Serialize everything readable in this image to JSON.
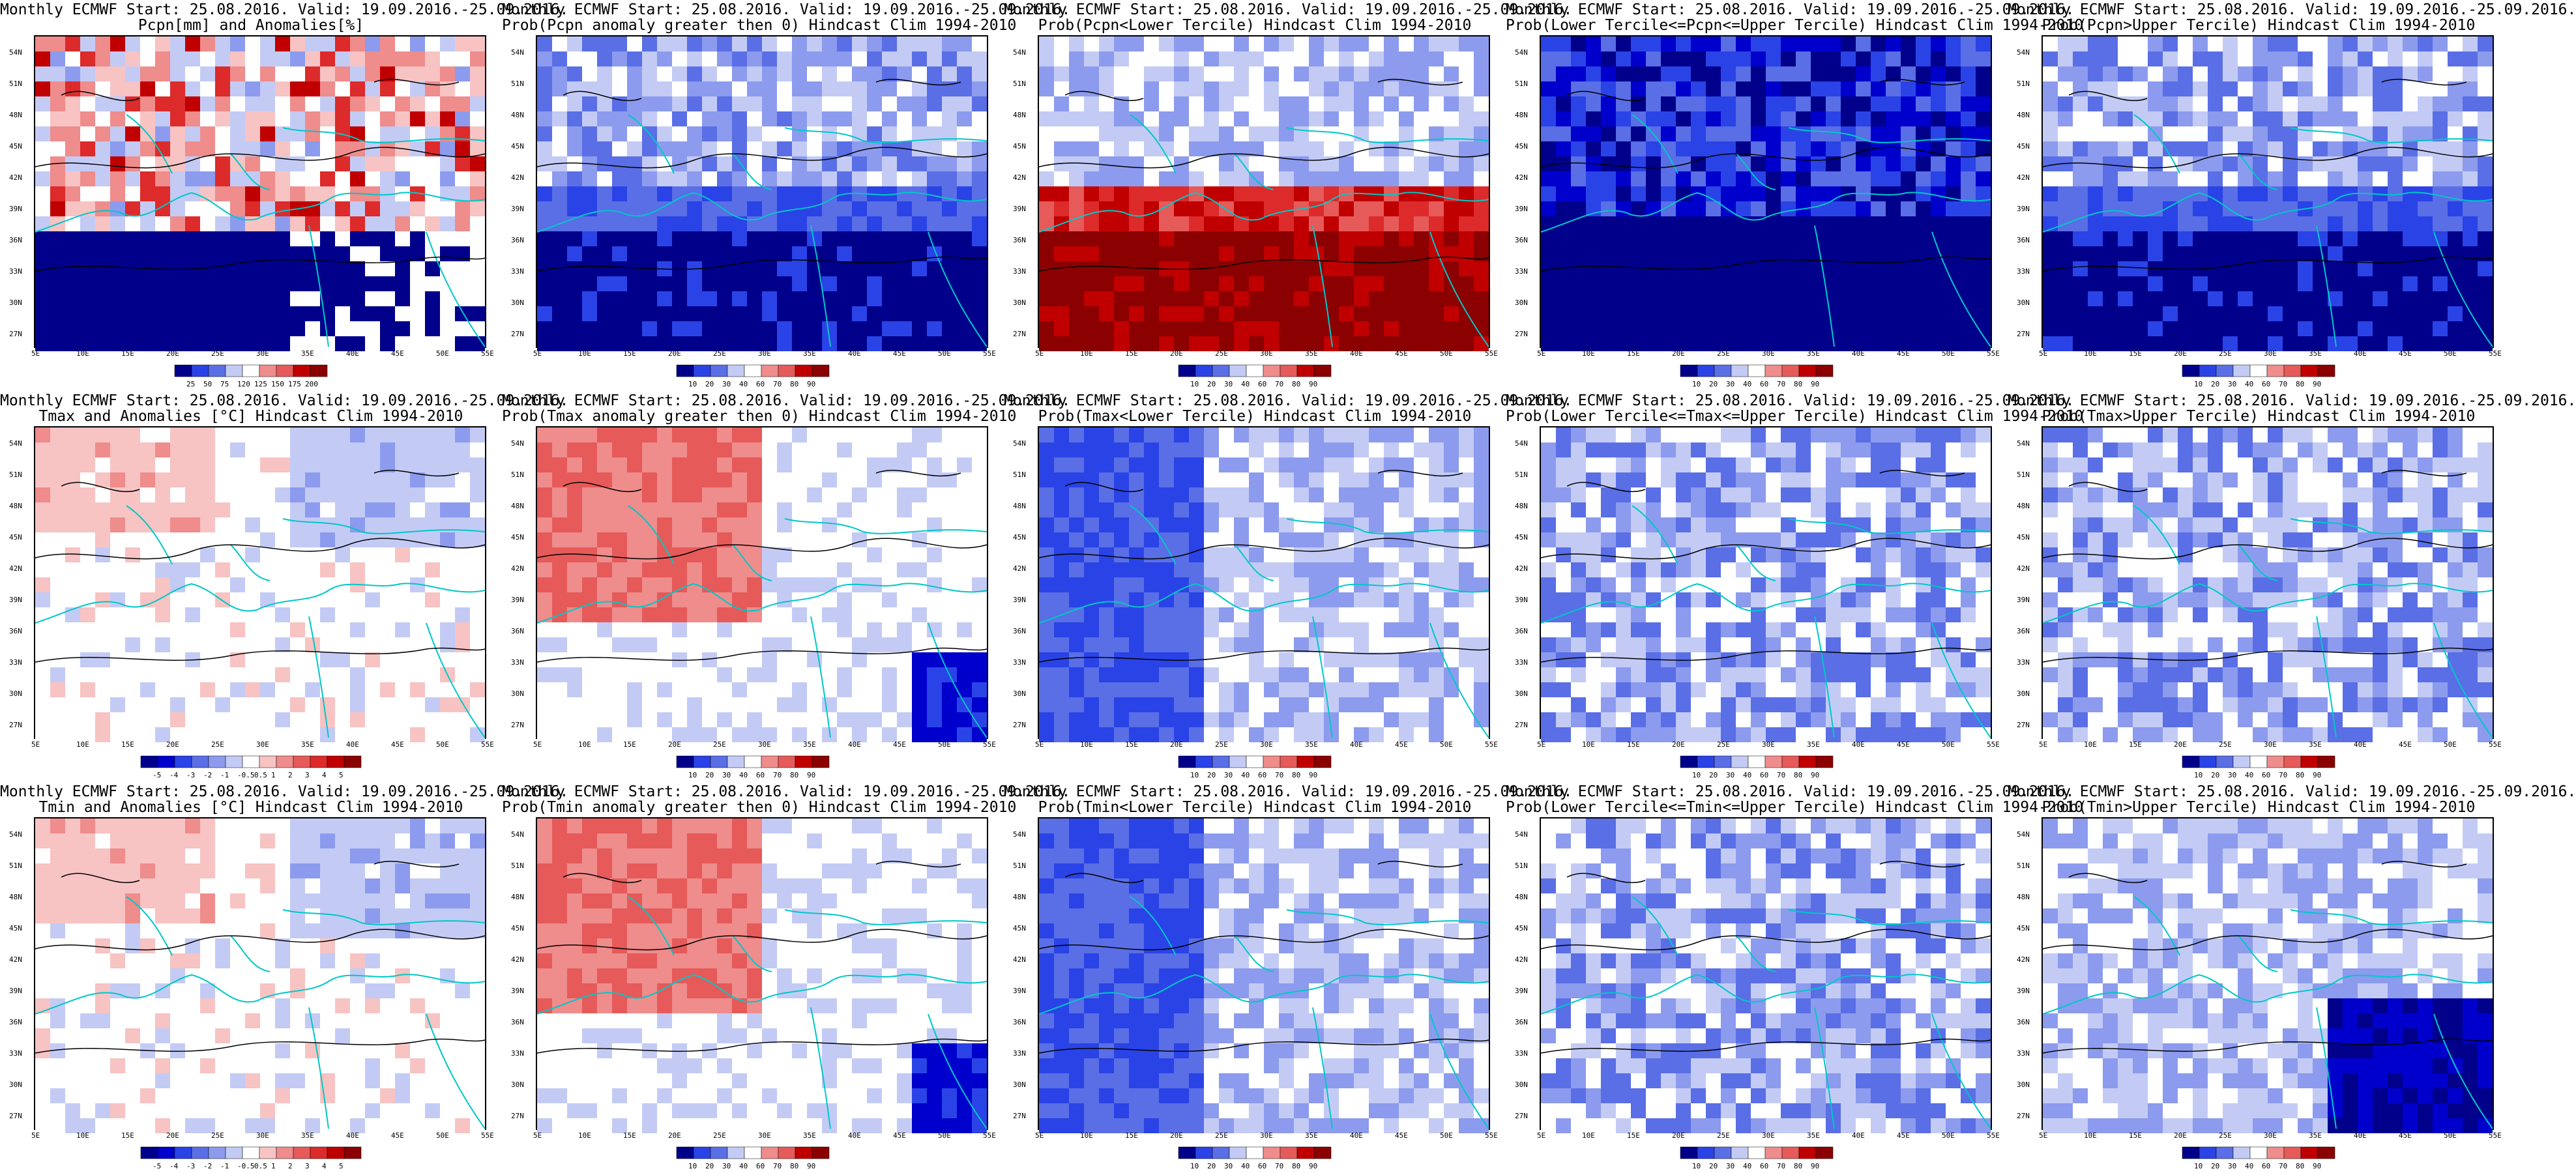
{
  "colors": {
    "scale": [
      "#00008b",
      "#0000cd",
      "#2a43e6",
      "#5a6ee6",
      "#8c9bee",
      "#c3cbf5",
      "#ffffff",
      "#f7c3c3",
      "#ef8c8c",
      "#e65a5a",
      "#dd2a2a",
      "#c00000",
      "#8b0000"
    ],
    "coast": "#00c8c8",
    "contour": "#000000"
  },
  "lat_labels": [
    "54N",
    "51N",
    "48N",
    "45N",
    "42N",
    "39N",
    "36N",
    "33N",
    "30N",
    "27N"
  ],
  "lon_labels": [
    "5E",
    "10E",
    "15E",
    "20E",
    "25E",
    "30E",
    "35E",
    "40E",
    "45E",
    "50E",
    "55E"
  ],
  "cbar_prob": [
    "10",
    "20",
    "30",
    "40",
    "60",
    "70",
    "80",
    "90"
  ],
  "panels": [
    {
      "title1": "Monthly ECMWF Start: 25.08.2016. Valid: 19.09.2016.-25.09.2016.",
      "title2": "Pcpn[mm] and Anomalies[%]",
      "cbar": [
        "25",
        "50",
        "75",
        "120",
        "125",
        "150",
        "175",
        "200"
      ],
      "pattern": "pcpn_anom"
    },
    {
      "title1": "Monthly ECMWF Start: 25.08.2016. Valid: 19.09.2016.-25.09.2016.",
      "title2": "Prob(Pcpn anomaly greater then 0) Hindcast Clim 1994-2010",
      "cbar": [
        "10",
        "20",
        "30",
        "40",
        "60",
        "70",
        "80",
        "90"
      ],
      "pattern": "blue_south"
    },
    {
      "title1": "Monthly ECMWF Start: 25.08.2016. Valid: 19.09.2016.-25.09.2016.",
      "title2": "Prob(Pcpn<Lower Tercile) Hindcast Clim 1994-2010",
      "cbar": [
        "10",
        "20",
        "30",
        "40",
        "60",
        "70",
        "80",
        "90"
      ],
      "pattern": "red_south"
    },
    {
      "title1": "Monthly ECMWF Start: 25.08.2016. Valid: 19.09.2016.-25.09.2016.",
      "title2": "Prob(Lower Tercile<=Pcpn<=Upper Tercile) Hindcast Clim 1994-2010",
      "cbar": [
        "10",
        "20",
        "30",
        "40",
        "60",
        "70",
        "80",
        "90"
      ],
      "pattern": "blue_all"
    },
    {
      "title1": "Monthly ECMWF Start: 25.08.2016. Valid: 19.09.2016.-25.09.2016.",
      "title2": "Prob(Pcpn>Upper Tercile) Hindcast Clim 1994-2010",
      "cbar": [
        "10",
        "20",
        "30",
        "40",
        "60",
        "70",
        "80",
        "90"
      ],
      "pattern": "blue_south"
    },
    {
      "title1": "Monthly ECMWF Start: 25.08.2016. Valid: 19.09.2016.-25.09.2016.",
      "title2": "Tmax and Anomalies [°C] Hindcast Clim 1994-2010",
      "cbar": [
        "-5",
        "-4",
        "-3",
        "-2",
        "-1",
        "-0.5",
        "0.5",
        "1",
        "2",
        "3",
        "4",
        "5"
      ],
      "pattern": "light_mix"
    },
    {
      "title1": "Monthly ECMWF Start: 25.08.2016. Valid: 19.09.2016.-25.09.2016.",
      "title2": "Prob(Tmax anomaly greater then 0) Hindcast Clim 1994-2010",
      "cbar": [
        "10",
        "20",
        "30",
        "40",
        "60",
        "70",
        "80",
        "90"
      ],
      "pattern": "red_west"
    },
    {
      "title1": "Monthly ECMWF Start: 25.08.2016. Valid: 19.09.2016.-25.09.2016.",
      "title2": "Prob(Tmax<Lower Tercile) Hindcast Clim 1994-2010",
      "cbar": [
        "10",
        "20",
        "30",
        "40",
        "60",
        "70",
        "80",
        "90"
      ],
      "pattern": "blue_west"
    },
    {
      "title1": "Monthly ECMWF Start: 25.08.2016. Valid: 19.09.2016.-25.09.2016.",
      "title2": "Prob(Lower Tercile<=Tmax<=Upper Tercile) Hindcast Clim 1994-2010",
      "cbar": [
        "10",
        "20",
        "30",
        "40",
        "60",
        "70",
        "80",
        "90"
      ],
      "pattern": "blue_light"
    },
    {
      "title1": "Monthly ECMWF Start: 25.08.2016. Valid: 19.09.2016.-25.09.2016.",
      "title2": "Prob(Tmax>Upper Tercile) Hindcast Clim 1994-2010",
      "cbar": [
        "10",
        "20",
        "30",
        "40",
        "60",
        "70",
        "80",
        "90"
      ],
      "pattern": "blue_light"
    },
    {
      "title1": "Monthly ECMWF Start: 25.08.2016. Valid: 19.09.2016.-25.09.2016.",
      "title2": "Tmin and Anomalies [°C] Hindcast Clim 1994-2010",
      "cbar": [
        "-5",
        "-4",
        "-3",
        "-2",
        "-1",
        "-0.5",
        "0.5",
        "1",
        "2",
        "3",
        "4",
        "5"
      ],
      "pattern": "light_mix"
    },
    {
      "title1": "Monthly ECMWF Start: 25.08.2016. Valid: 19.09.2016.-25.09.2016.",
      "title2": "Prob(Tmin anomaly greater then 0) Hindcast Clim 1994-2010",
      "cbar": [
        "10",
        "20",
        "30",
        "40",
        "60",
        "70",
        "80",
        "90"
      ],
      "pattern": "red_west"
    },
    {
      "title1": "Monthly ECMWF Start: 25.08.2016. Valid: 19.09.2016.-25.09.2016.",
      "title2": "Prob(Tmin<Lower Tercile) Hindcast Clim 1994-2010",
      "cbar": [
        "10",
        "20",
        "30",
        "40",
        "60",
        "70",
        "80",
        "90"
      ],
      "pattern": "blue_west"
    },
    {
      "title1": "Monthly ECMWF Start: 25.08.2016. Valid: 19.09.2016.-25.09.2016.",
      "title2": "Prob(Lower Tercile<=Tmin<=Upper Tercile) Hindcast Clim 1994-2010",
      "cbar": [
        "10",
        "20",
        "30",
        "40",
        "60",
        "70",
        "80",
        "90"
      ],
      "pattern": "blue_light"
    },
    {
      "title1": "Monthly ECMWF Start: 25.08.2016. Valid: 19.09.2016.-25.09.2016.",
      "title2": "Prob(Tmin>Upper Tercile) Hindcast Clim 1994-2010",
      "cbar": [
        "10",
        "20",
        "30",
        "40",
        "60",
        "70",
        "80",
        "90"
      ],
      "pattern": "blue_southeast"
    }
  ]
}
